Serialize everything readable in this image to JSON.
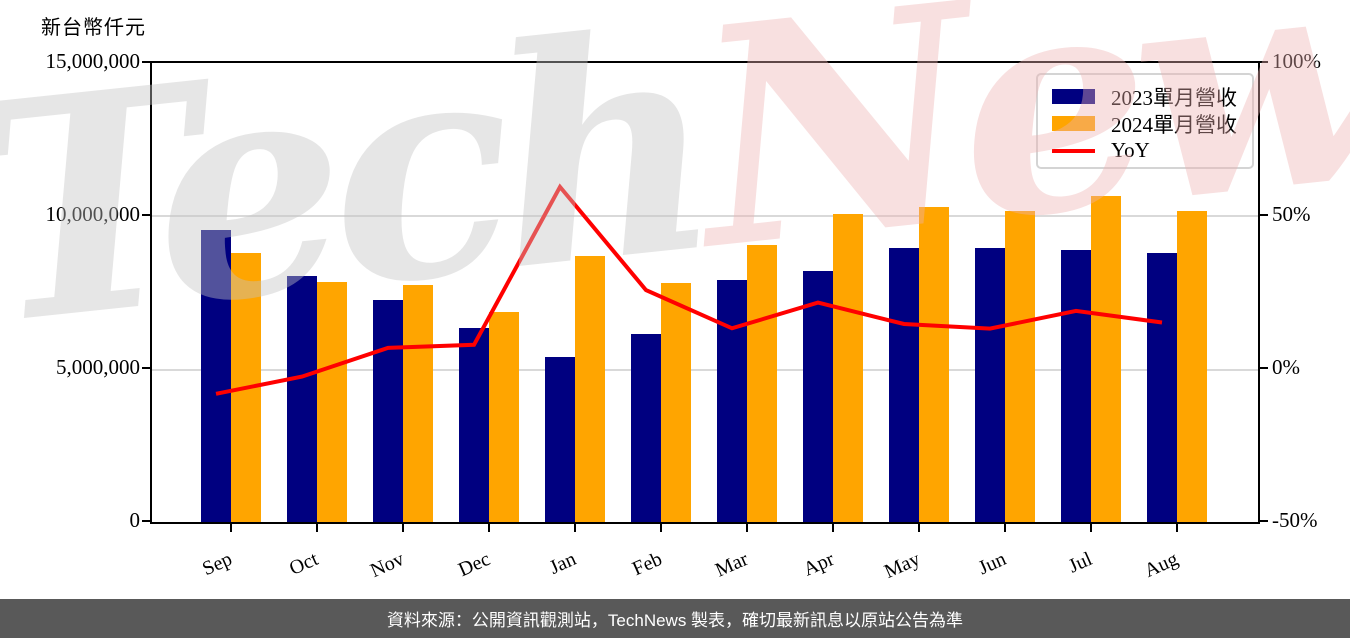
{
  "footer": {
    "text": "資料來源：公開資訊觀測站，TechNews 製表，確切最新訊息以原站公告為準"
  },
  "watermark": {
    "part1": "Tech",
    "part2": "News"
  },
  "legend": {
    "items": [
      {
        "label": "2023單月營收",
        "swatch": "box",
        "color": "#000080"
      },
      {
        "label": "2024單月營收",
        "swatch": "box",
        "color": "#FFA500"
      },
      {
        "label": "YoY",
        "swatch": "line",
        "color": "#FF0000"
      }
    ]
  },
  "chart_data": {
    "type": "bar",
    "title": "",
    "categories": [
      "Sep",
      "Oct",
      "Nov",
      "Dec",
      "Jan",
      "Feb",
      "Mar",
      "Apr",
      "May",
      "Jun",
      "Jul",
      "Aug"
    ],
    "series": [
      {
        "name": "2023單月營收",
        "type": "bar",
        "axis": "left",
        "color": "#000080",
        "values": [
          9550000,
          8050000,
          7250000,
          6350000,
          5400000,
          6150000,
          7900000,
          8200000,
          8950000,
          8950000,
          8900000,
          8800000
        ]
      },
      {
        "name": "2024單月營收",
        "type": "bar",
        "axis": "left",
        "color": "#FFA500",
        "values": [
          8800000,
          7850000,
          7750000,
          6850000,
          8700000,
          7800000,
          9050000,
          10050000,
          10300000,
          10150000,
          10650000,
          10150000
        ]
      },
      {
        "name": "YoY",
        "type": "line",
        "axis": "right",
        "color": "#FF0000",
        "values": [
          -8.1,
          -2.5,
          6.9,
          7.9,
          59.5,
          25.8,
          13.3,
          21.7,
          14.7,
          13.2,
          19.0,
          15.2
        ]
      }
    ],
    "left_axis": {
      "title": "新台幣仟元",
      "unit": "NTD thousand",
      "min": 0,
      "max": 15000000,
      "tick_labels": [
        "0",
        "5,000,000",
        "10,000,000",
        "15,000,000"
      ]
    },
    "right_axis": {
      "title": "YoY %",
      "min": -50,
      "max": 100,
      "tick_labels": [
        "-50%",
        "0%",
        "50%",
        "100%"
      ]
    },
    "grid": true,
    "legend_position": "top-right",
    "gridline_color": "#d9d9d9"
  }
}
